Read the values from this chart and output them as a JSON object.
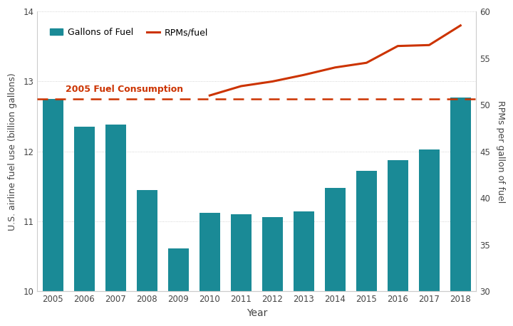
{
  "years": [
    2005,
    2006,
    2007,
    2008,
    2009,
    2010,
    2011,
    2012,
    2013,
    2014,
    2015,
    2016,
    2017,
    2018
  ],
  "fuel_gallons": [
    12.75,
    12.35,
    12.38,
    11.45,
    10.62,
    11.12,
    11.1,
    11.06,
    11.14,
    11.48,
    11.72,
    11.88,
    12.03,
    12.77
  ],
  "rpms_per_gallon": [
    null,
    null,
    null,
    null,
    null,
    51.0,
    52.0,
    52.5,
    53.2,
    54.0,
    54.5,
    56.3,
    56.4,
    58.5
  ],
  "fuel_2005_ref": 12.75,
  "bar_color": "#1a8a96",
  "line_color": "#cc3300",
  "dashed_color": "#cc3300",
  "ylabel_left": "U.S. airline fuel use (billion gallons)",
  "ylabel_right": "RPMs per gallon of fuel",
  "xlabel": "Year",
  "ylim_left": [
    10,
    14
  ],
  "ylim_right": [
    30,
    60
  ],
  "yticks_left": [
    10,
    11,
    12,
    13,
    14
  ],
  "yticks_right": [
    30,
    35,
    40,
    45,
    50,
    55,
    60
  ],
  "legend_fuel_label": "Gallons of Fuel",
  "legend_rpm_label": "RPMs/fuel",
  "annotation_text": "2005 Fuel Consumption",
  "annotation_color": "#cc3300",
  "background_color": "#ffffff",
  "grid_color": "#c8c8c8"
}
